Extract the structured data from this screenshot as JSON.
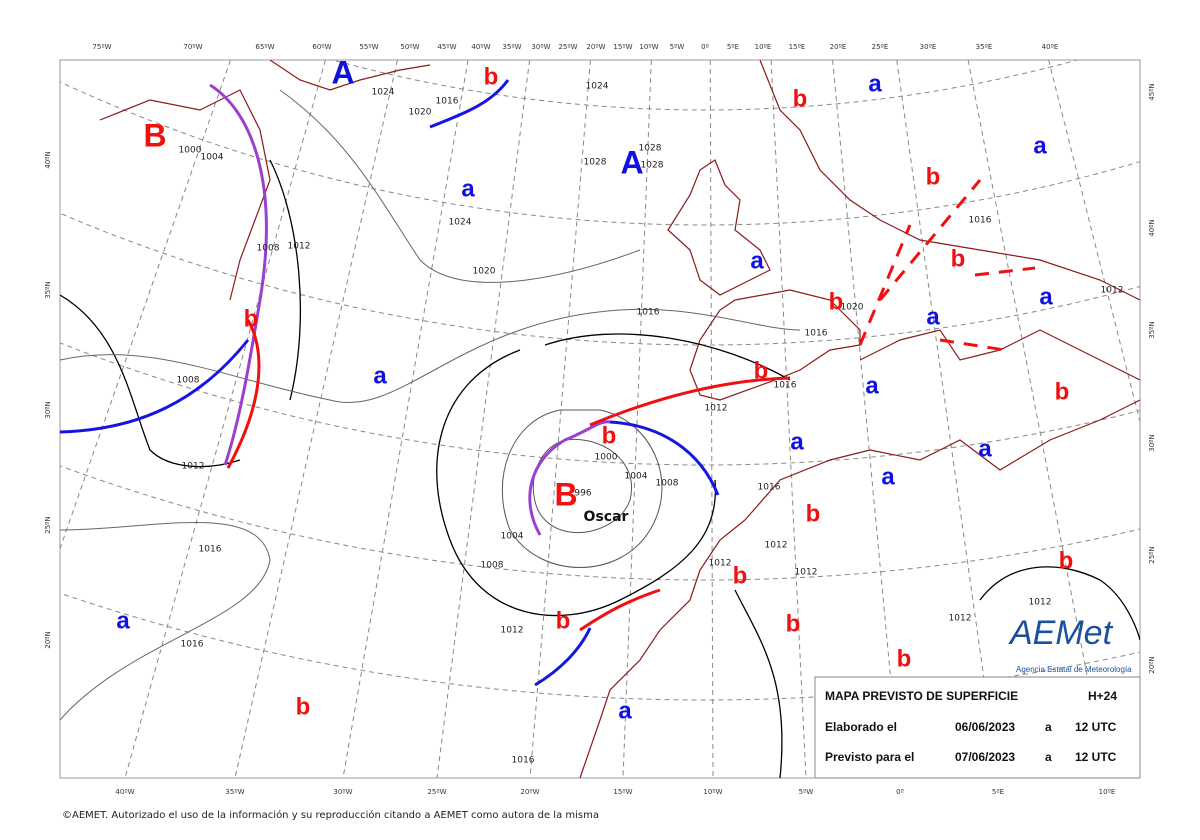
{
  "top_lon_labels": [
    "75ºW",
    "70ºW",
    "65ºW",
    "60ºW",
    "55ºW",
    "50ºW",
    "45ºW",
    "40ºW",
    "35ºW",
    "30ºW",
    "25ºW",
    "20ºW",
    "15ºW",
    "10ºW",
    "5ºW",
    "0º",
    "5ºE",
    "10ºE",
    "15ºE",
    "20ºE",
    "25ºE",
    "30ºE",
    "35ºE",
    "40ºE"
  ],
  "bottom_lon_labels": [
    "40ºW",
    "35ºW",
    "30ºW",
    "25ºW",
    "20ºW",
    "15ºW",
    "10ºW",
    "5ºW",
    "0º",
    "5ºE",
    "10ºE"
  ],
  "left_lat_labels": [
    "40ºN",
    "35ºN",
    "30ºN",
    "25ºN",
    "20ºN"
  ],
  "right_lat_labels": [
    "45ºN",
    "40ºN",
    "35ºN",
    "30ºN",
    "25ºN",
    "20ºN"
  ],
  "pressure_centers": [
    {
      "text": "A",
      "color": "#1010e0"
    },
    {
      "text": "B",
      "color": "#f01010"
    },
    {
      "text": "A",
      "color": "#1010e0"
    },
    {
      "text": "B",
      "color": "#f01010"
    },
    {
      "text": "a",
      "color": "#1010e0"
    },
    {
      "text": "a",
      "color": "#1010e0"
    },
    {
      "text": "a",
      "color": "#1010e0"
    },
    {
      "text": "a",
      "color": "#1010e0"
    },
    {
      "text": "a",
      "color": "#1010e0"
    },
    {
      "text": "a",
      "color": "#1010e0"
    },
    {
      "text": "a",
      "color": "#1010e0"
    },
    {
      "text": "a",
      "color": "#1010e0"
    },
    {
      "text": "a",
      "color": "#1010e0"
    },
    {
      "text": "a",
      "color": "#1010e0"
    },
    {
      "text": "a",
      "color": "#1010e0"
    },
    {
      "text": "a",
      "color": "#1010e0"
    },
    {
      "text": "a",
      "color": "#1010e0"
    },
    {
      "text": "b",
      "color": "#f01010"
    },
    {
      "text": "b",
      "color": "#f01010"
    },
    {
      "text": "b",
      "color": "#f01010"
    },
    {
      "text": "b",
      "color": "#f01010"
    },
    {
      "text": "b",
      "color": "#f01010"
    },
    {
      "text": "b",
      "color": "#f01010"
    },
    {
      "text": "b",
      "color": "#f01010"
    },
    {
      "text": "b",
      "color": "#f01010"
    },
    {
      "text": "b",
      "color": "#f01010"
    },
    {
      "text": "b",
      "color": "#f01010"
    },
    {
      "text": "b",
      "color": "#f01010"
    },
    {
      "text": "b",
      "color": "#f01010"
    },
    {
      "text": "b",
      "color": "#f01010"
    },
    {
      "text": "b",
      "color": "#f01010"
    },
    {
      "text": "b",
      "color": "#f01010"
    },
    {
      "text": "b",
      "color": "#f01010"
    }
  ],
  "isobar_labels": [
    "1024",
    "1016",
    "1020",
    "1000",
    "1004",
    "1008",
    "1012",
    "1024",
    "1020",
    "1016",
    "1028",
    "1028",
    "1028",
    "1024",
    "1012",
    "1000",
    "1004",
    "1008",
    "996",
    "1004",
    "1008",
    "1012",
    "1012",
    "1008",
    "1016",
    "1016",
    "1016",
    "1016",
    "1016",
    "1016",
    "1020",
    "1016",
    "1012",
    "1012",
    "1012",
    "1012",
    "1012",
    "1012"
  ],
  "storm_name": "Oscar",
  "info_box": {
    "title": "MAPA PREVISTO DE SUPERFICIE",
    "lead_time": "H+24",
    "rows": [
      [
        "Elaborado el",
        "06/06/2023",
        "a",
        "12 UTC"
      ],
      [
        "Previsto para el",
        "07/06/2023",
        "a",
        "12 UTC"
      ]
    ]
  },
  "logo": {
    "name": "AEMet",
    "subtitle": "Agencia Estatal de Meteorología"
  },
  "footer": "©AEMET. Autorizado el uso de la información y su reproducción citando a AEMET como autora de la misma"
}
